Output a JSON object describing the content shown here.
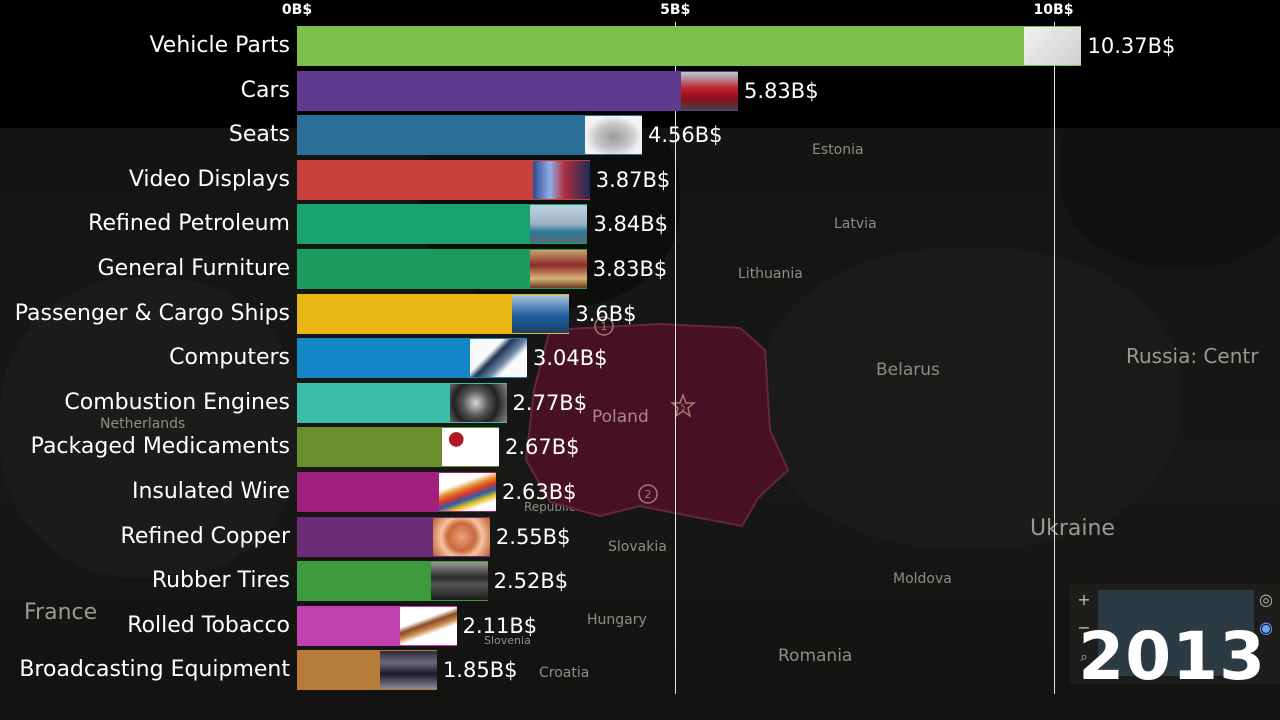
{
  "chart_data": {
    "type": "bar",
    "orientation": "horizontal",
    "title": "",
    "xlabel": "",
    "ylabel": "",
    "xlim": [
      0,
      11.5
    ],
    "x_ticks": [
      0,
      5,
      10
    ],
    "x_tick_labels": [
      "0B$",
      "5B$",
      "10B$"
    ],
    "grid": true,
    "categories": [
      "Vehicle Parts",
      "Cars",
      "Seats",
      "Video Displays",
      "Refined Petroleum",
      "General Furniture",
      "Passenger & Cargo Ships",
      "Computers",
      "Combustion Engines",
      "Packaged Medicaments",
      "Insulated Wire",
      "Refined Copper",
      "Rubber Tires",
      "Rolled Tobacco",
      "Broadcasting Equipment"
    ],
    "values": [
      10.37,
      5.83,
      4.56,
      3.87,
      3.84,
      3.83,
      3.6,
      3.04,
      2.77,
      2.67,
      2.63,
      2.55,
      2.52,
      2.11,
      1.85
    ],
    "value_labels": [
      "10.37B$",
      "5.83B$",
      "4.56B$",
      "3.87B$",
      "3.84B$",
      "3.83B$",
      "3.6B$",
      "3.04B$",
      "2.77B$",
      "2.67B$",
      "2.63B$",
      "2.55B$",
      "2.52B$",
      "2.11B$",
      "1.85B$"
    ],
    "colors": [
      "#7cc04b",
      "#5e3b8e",
      "#2a6f98",
      "#c9403d",
      "#17a26e",
      "#1d9a5f",
      "#e9b714",
      "#1486c8",
      "#3bbdab",
      "#6a8e2b",
      "#a1207e",
      "#6d2c78",
      "#3c9a3c",
      "#c13fae",
      "#b77b3a"
    ],
    "thumb_icons": [
      "car-body-diagram-icon",
      "red-car-icon",
      "car-seat-icon",
      "screens-icon",
      "refinery-icon",
      "furniture-icon",
      "ship-icon",
      "laptop-icon",
      "engine-icon",
      "pills-icon",
      "wire-icon",
      "copper-coil-icon",
      "tires-icon",
      "cigar-icon",
      "broadcast-rack-icon"
    ],
    "year": "2013"
  },
  "map": {
    "labels": [
      "Estonia",
      "Latvia",
      "Lithuania",
      "Belarus",
      "Russia: Centr",
      "Poland",
      "Ukraine",
      "Netherlands",
      "Slovakia",
      "Moldova",
      "Hungary",
      "Romania",
      "France",
      "Croatia",
      "Slovenia",
      "Republic"
    ],
    "markers": [
      "1",
      "5",
      "2"
    ]
  }
}
